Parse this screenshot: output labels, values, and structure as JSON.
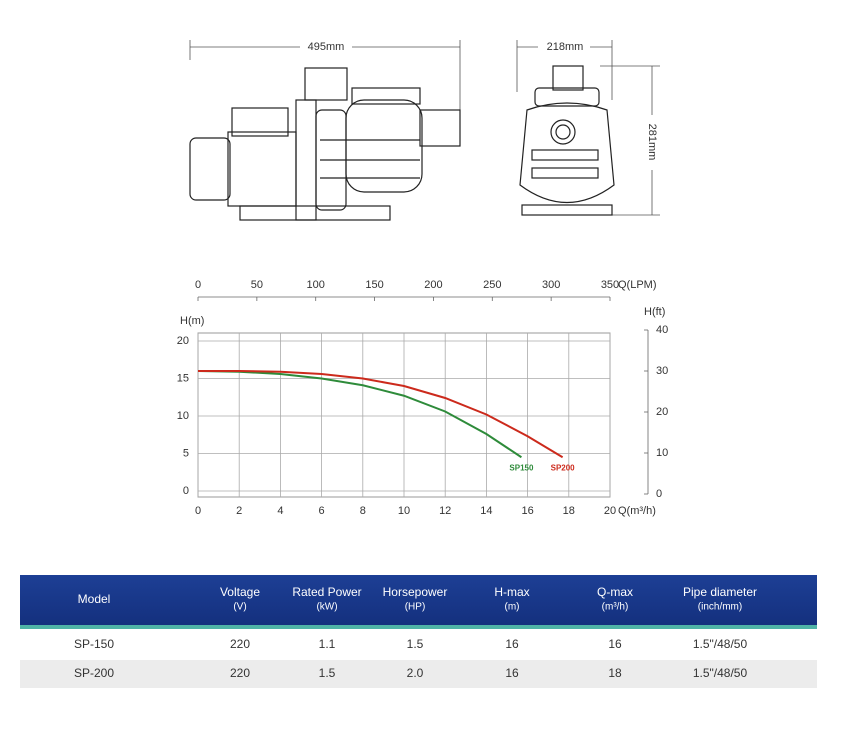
{
  "drawings": {
    "width_label": "495mm",
    "depth_label": "218mm",
    "height_label": "281mm"
  },
  "chart_data": {
    "type": "line",
    "x_label": "Q(m³/h)",
    "x2_label": "Q(LPM)",
    "y_label": "H(m)",
    "y2_label": "H(ft)",
    "xlim": [
      0,
      20
    ],
    "xticks": [
      0,
      2,
      4,
      6,
      8,
      10,
      12,
      14,
      16,
      18,
      20
    ],
    "x2lim": [
      0,
      350
    ],
    "x2ticks": [
      0,
      50,
      100,
      150,
      200,
      250,
      300,
      350
    ],
    "ylim": [
      0,
      20
    ],
    "yticks": [
      0,
      5,
      10,
      15,
      20
    ],
    "y2lim": [
      0,
      40
    ],
    "y2ticks": [
      0,
      10,
      20,
      30,
      40
    ],
    "grid": true,
    "series": [
      {
        "name": "SP150",
        "color": "#2e8b3a",
        "x": [
          0,
          2,
          4,
          6,
          8,
          10,
          12,
          14,
          15.7
        ],
        "values": [
          16,
          15.9,
          15.6,
          15,
          14.1,
          12.7,
          10.6,
          7.6,
          4.5
        ]
      },
      {
        "name": "SP200",
        "color": "#cc2a1c",
        "x": [
          0,
          2,
          4,
          6,
          8,
          10,
          12,
          14,
          16,
          17.7
        ],
        "values": [
          16,
          16,
          15.9,
          15.6,
          15,
          14,
          12.4,
          10.2,
          7.3,
          4.5
        ]
      }
    ]
  },
  "table": {
    "columns": [
      {
        "title": "Model"
      },
      {
        "title": "Voltage",
        "unit": "(V)"
      },
      {
        "title": "Rated Power",
        "unit": "(kW)"
      },
      {
        "title": "Horsepower",
        "unit": "(HP)"
      },
      {
        "title": "H-max",
        "unit": "(m)"
      },
      {
        "title": "Q-max",
        "unit": "(m³/h)"
      },
      {
        "title": "Pipe diameter",
        "unit": "(inch/mm)"
      }
    ],
    "rows": [
      [
        "SP-150",
        "220",
        "1.1",
        "1.5",
        "16",
        "16",
        "1.5\"/48/50"
      ],
      [
        "SP-200",
        "220",
        "1.5",
        "2.0",
        "16",
        "18",
        "1.5\"/48/50"
      ]
    ]
  }
}
